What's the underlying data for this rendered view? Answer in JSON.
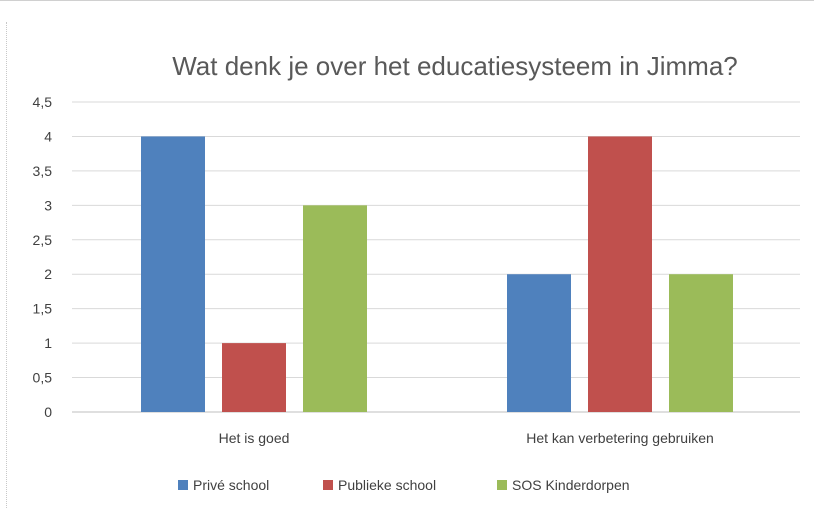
{
  "chart_data": {
    "type": "bar",
    "title": "Wat denk je over het educatiesysteem in Jimma?",
    "categories": [
      "Het is goed",
      "Het kan verbetering gebruiken"
    ],
    "series": [
      {
        "name": "Privé school",
        "values": [
          4,
          2
        ],
        "color": "#4f81bd"
      },
      {
        "name": "Publieke school",
        "values": [
          1,
          4
        ],
        "color": "#c0504d"
      },
      {
        "name": "SOS Kinderdorpen",
        "values": [
          3,
          2
        ],
        "color": "#9bbb59"
      }
    ],
    "ylim": [
      0,
      4.5
    ],
    "yticks": [
      "0",
      "0,5",
      "1",
      "1,5",
      "2",
      "2,5",
      "3",
      "3,5",
      "4",
      "4,5"
    ],
    "grid": true,
    "legend_position": "bottom"
  }
}
